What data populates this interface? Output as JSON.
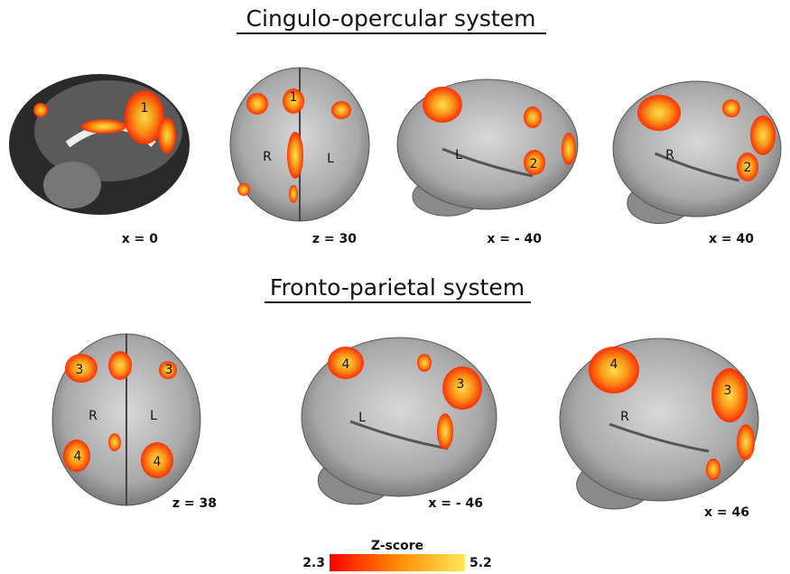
{
  "sections": [
    {
      "title": "Cingulo-opercular system",
      "panels": [
        {
          "slice": "x = 0",
          "labels": [
            "1"
          ]
        },
        {
          "slice": "z = 30",
          "labels": [
            "1",
            "R",
            "L"
          ]
        },
        {
          "slice": "x = - 40",
          "labels": [
            "L",
            "2"
          ]
        },
        {
          "slice": "x = 40",
          "labels": [
            "R",
            "2"
          ]
        }
      ]
    },
    {
      "title": "Fronto-parietal system",
      "panels": [
        {
          "slice": "z = 38",
          "labels": [
            "3",
            "3",
            "R",
            "L",
            "4",
            "4"
          ]
        },
        {
          "slice": "x = - 46",
          "labels": [
            "4",
            "L",
            "3"
          ]
        },
        {
          "slice": "x = 46",
          "labels": [
            "4",
            "R",
            "3"
          ]
        }
      ]
    }
  ],
  "colorbar": {
    "title": "Z-score",
    "min": 2.3,
    "max": 5.2
  }
}
